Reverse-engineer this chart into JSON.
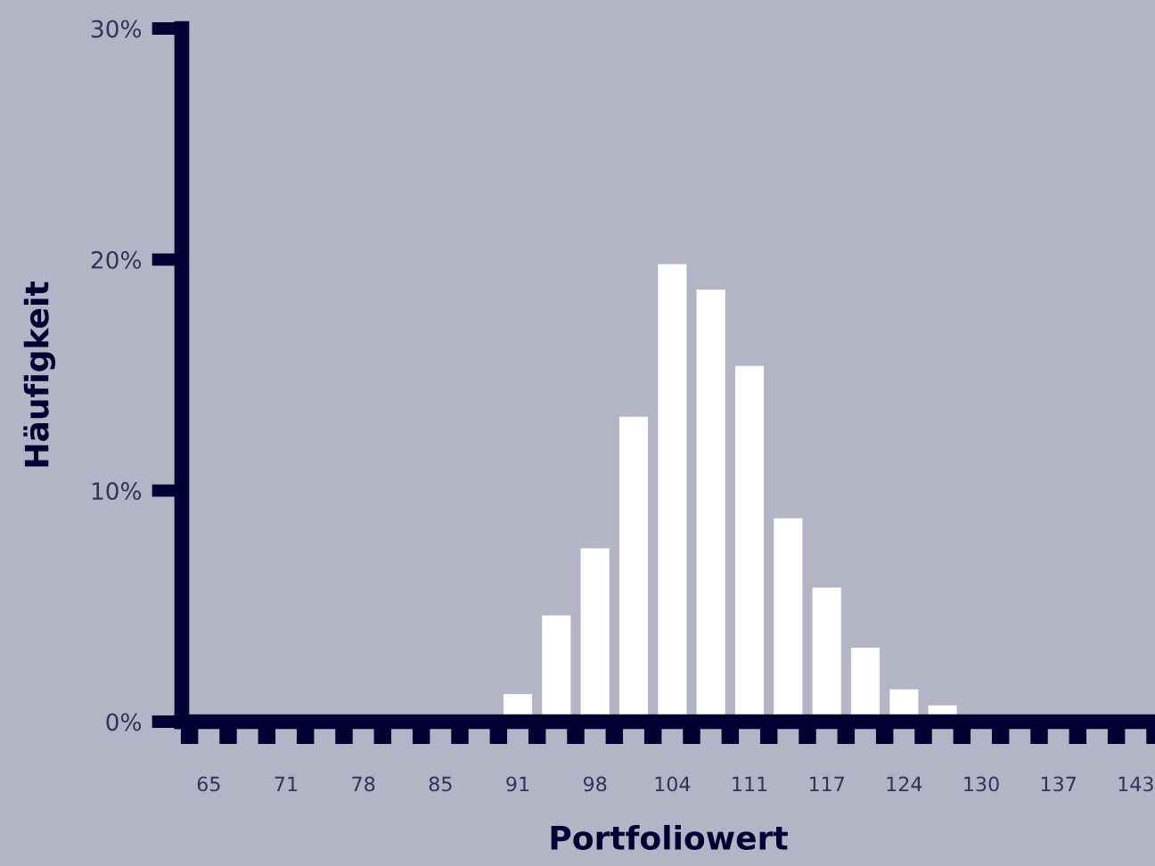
{
  "chart_data": {
    "type": "bar",
    "xlabel": "Portfoliowert",
    "ylabel": "Häufigkeit",
    "categories": [
      "65",
      null,
      "71",
      null,
      "78",
      null,
      "85",
      null,
      "91",
      null,
      "98",
      null,
      "104",
      null,
      "111",
      null,
      "117",
      null,
      "124",
      null,
      "130",
      null,
      "137",
      null,
      "143"
    ],
    "values": [
      null,
      null,
      null,
      null,
      null,
      null,
      null,
      null,
      1.2,
      4.6,
      7.5,
      13.2,
      19.8,
      18.7,
      15.4,
      8.8,
      5.8,
      3.2,
      1.4,
      0.7,
      null,
      null,
      null,
      null,
      null
    ],
    "color": "#ffffff",
    "ylim": [
      0,
      30
    ],
    "yticks": [
      {
        "value": 0,
        "label": "0%"
      },
      {
        "value": 10,
        "label": "10%"
      },
      {
        "value": 20,
        "label": "20%"
      },
      {
        "value": 30,
        "label": "30%"
      }
    ],
    "grid": false,
    "legend": false
  }
}
